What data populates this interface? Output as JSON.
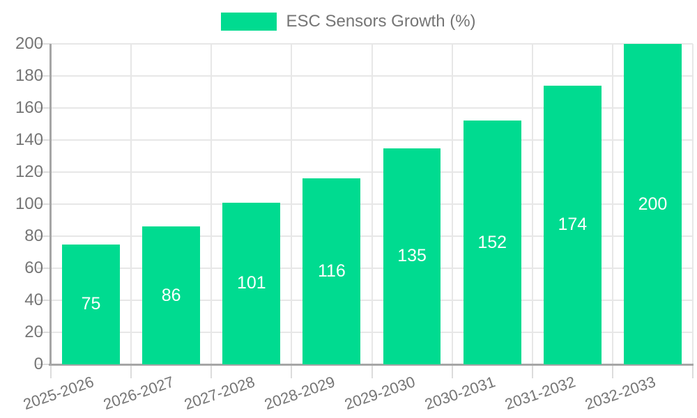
{
  "chart_data": {
    "type": "bar",
    "title": "ESC Sensors Growth (%)",
    "categories": [
      "2025-2026",
      "2026-2027",
      "2027-2028",
      "2028-2029",
      "2029-2030",
      "2030-2031",
      "2031-2032",
      "2032-2033"
    ],
    "values": [
      75,
      86,
      101,
      116,
      135,
      152,
      174,
      200
    ],
    "bar_labels": [
      "75",
      "86",
      "101",
      "116",
      "135",
      "152",
      "174",
      "200"
    ],
    "yticks": [
      0,
      20,
      40,
      60,
      80,
      100,
      120,
      140,
      160,
      180,
      200
    ],
    "ylim": [
      0,
      200
    ],
    "xlabel": "",
    "ylabel": "",
    "grid": "both",
    "legend": {
      "label": "ESC Sensors Growth (%)",
      "position": "top-center"
    },
    "colors": {
      "bar": "#00DB90",
      "bar_label_text": "#FFFFFF",
      "axis": "#A6A6A6",
      "gridline": "#E7E7E7",
      "tick": "#DCDCDC",
      "tick_label_text": "#757575",
      "legend_text": "#757575",
      "background": "#FFFFFF"
    }
  }
}
